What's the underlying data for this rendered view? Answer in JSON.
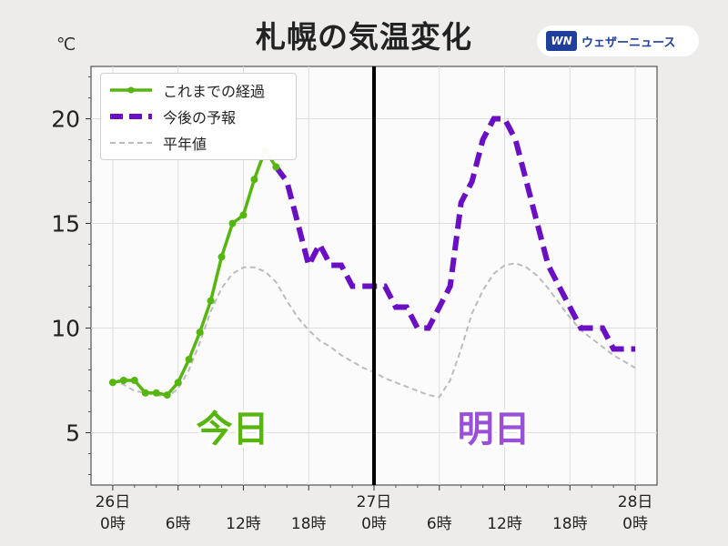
{
  "title": "札幌の気温変化",
  "unit": "℃",
  "logo": {
    "mark": "WN",
    "text": "ウェザーニュース"
  },
  "colors": {
    "observed": "#56b60f",
    "forecast": "#6a0fc4",
    "normal": "#bcbcbc"
  },
  "chart_data": {
    "type": "line",
    "x_unit": "hours from 26日 0時",
    "xlim": [
      -2,
      50
    ],
    "ylim": [
      2.5,
      22.5
    ],
    "y_ticks": [
      5,
      10,
      15,
      20
    ],
    "x_ticks": [
      {
        "x": 0,
        "top": "26日",
        "bottom": "0時"
      },
      {
        "x": 6,
        "top": "",
        "bottom": "6時"
      },
      {
        "x": 12,
        "top": "",
        "bottom": "12時"
      },
      {
        "x": 18,
        "top": "",
        "bottom": "18時"
      },
      {
        "x": 24,
        "top": "27日",
        "bottom": "0時"
      },
      {
        "x": 30,
        "top": "",
        "bottom": "6時"
      },
      {
        "x": 36,
        "top": "",
        "bottom": "12時"
      },
      {
        "x": 42,
        "top": "",
        "bottom": "18時"
      },
      {
        "x": 48,
        "top": "28日",
        "bottom": "0時"
      }
    ],
    "separator_x": 24,
    "series": [
      {
        "name": "これまでの経過",
        "style": "solid-markers",
        "x": [
          0,
          1,
          2,
          3,
          4,
          5,
          6,
          7,
          8,
          9,
          10,
          11,
          12,
          13,
          14,
          15
        ],
        "y": [
          7.4,
          7.5,
          7.5,
          6.9,
          6.9,
          6.8,
          7.4,
          8.5,
          9.8,
          11.3,
          13.4,
          15.0,
          15.4,
          17.1,
          18.5,
          17.7
        ]
      },
      {
        "name": "今後の予報",
        "style": "thick-dashed",
        "x": [
          15,
          16,
          17,
          18,
          19,
          20,
          21,
          22,
          23,
          24,
          25,
          26,
          27,
          28,
          29,
          30,
          31,
          32,
          33,
          34,
          35,
          36,
          37,
          38,
          39,
          40,
          41,
          42,
          43,
          44,
          45,
          46,
          47,
          48
        ],
        "y": [
          17.7,
          17.0,
          15.0,
          13.0,
          14.0,
          13.0,
          13.0,
          12.0,
          12.0,
          12.0,
          12.0,
          11.0,
          11.0,
          10.0,
          10.0,
          11.0,
          12.0,
          16.0,
          17.0,
          19.0,
          20.0,
          20.0,
          19.0,
          17.0,
          15.0,
          13.0,
          12.0,
          11.0,
          10.0,
          10.0,
          10.0,
          9.0,
          9.0,
          9.0
        ]
      },
      {
        "name": "平年値",
        "style": "thin-dashed",
        "x": [
          0,
          1,
          2,
          3,
          4,
          5,
          6,
          7,
          8,
          9,
          10,
          11,
          12,
          13,
          14,
          15,
          16,
          17,
          18,
          19,
          20,
          21,
          22,
          23,
          24,
          25,
          26,
          27,
          28,
          29,
          30,
          31,
          32,
          33,
          34,
          35,
          36,
          37,
          38,
          39,
          40,
          41,
          42,
          43,
          44,
          45,
          46,
          47,
          48
        ],
        "y": [
          7.5,
          7.3,
          7.0,
          6.9,
          6.8,
          6.7,
          7.1,
          8.0,
          9.3,
          10.8,
          11.9,
          12.6,
          12.9,
          12.9,
          12.7,
          12.2,
          11.3,
          10.5,
          9.9,
          9.4,
          9.1,
          8.7,
          8.4,
          8.1,
          7.9,
          7.6,
          7.4,
          7.2,
          7.0,
          6.8,
          6.7,
          7.5,
          9.0,
          10.7,
          11.8,
          12.6,
          13.0,
          13.1,
          12.9,
          12.5,
          11.9,
          11.2,
          10.5,
          9.9,
          9.5,
          9.1,
          8.7,
          8.4,
          8.1
        ]
      }
    ],
    "annotations": [
      {
        "text": "今日",
        "x": 11,
        "y": 5.2,
        "color": "#56b60f"
      },
      {
        "text": "明日",
        "x": 35,
        "y": 5.2,
        "color": "#9a4fd8"
      }
    ]
  }
}
